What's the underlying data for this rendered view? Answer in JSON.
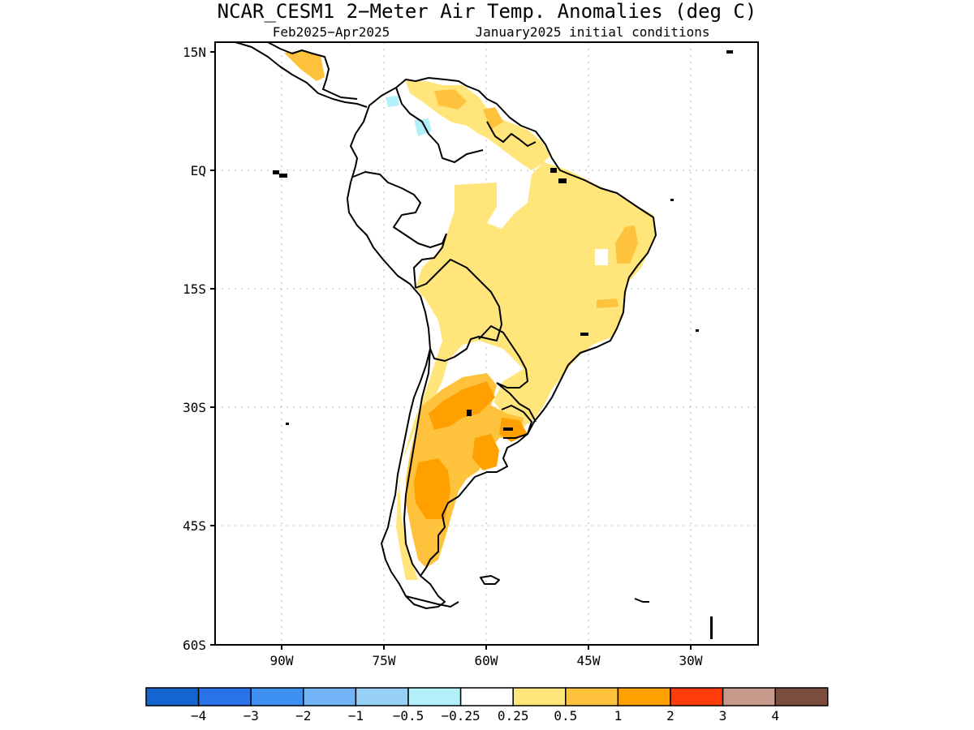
{
  "title": "NCAR_CESM1 2−Meter Air Temp. Anomalies (deg C)",
  "subtitle_left": "Feb2025−Apr2025",
  "subtitle_right": "January2025 initial conditions",
  "y_ticks": [
    "15N",
    "EQ",
    "15S",
    "30S",
    "45S",
    "60S"
  ],
  "x_ticks": [
    "90W",
    "75W",
    "60W",
    "45W",
    "30W"
  ],
  "colorbar": {
    "colors": [
      "#1565d0",
      "#2a72e8",
      "#3d8ff0",
      "#72b4f5",
      "#96d0f7",
      "#b4f0fa",
      "#ffffff",
      "#ffe57a",
      "#ffc23c",
      "#ffa000",
      "#ff3c0a",
      "#c89a8c",
      "#7a4d3e"
    ],
    "labels": [
      "−4",
      "−3",
      "−2",
      "−1",
      "−0.5",
      "−0.25",
      "0.25",
      "0.5",
      "1",
      "2",
      "3",
      "4"
    ]
  }
}
